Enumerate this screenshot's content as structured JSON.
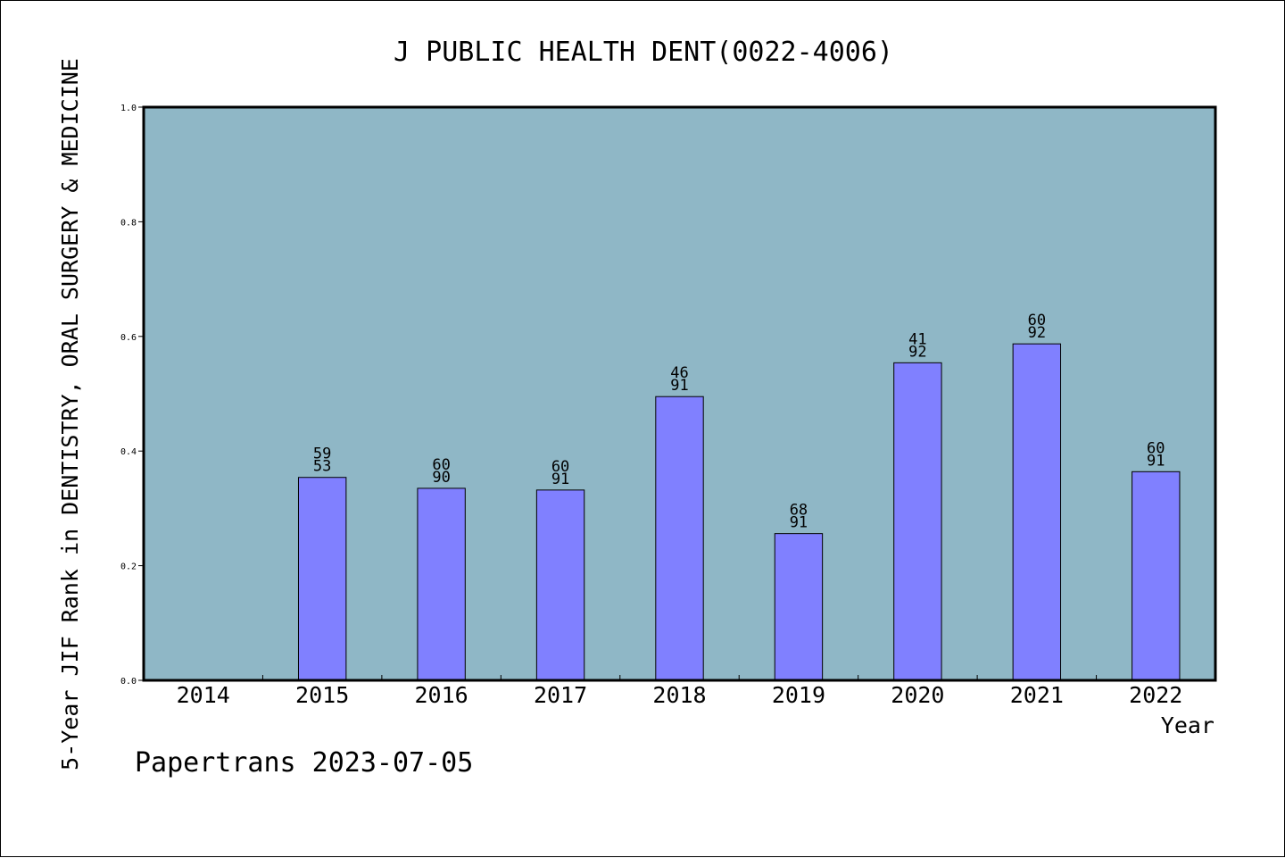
{
  "chart_data": {
    "type": "bar",
    "title": "J PUBLIC HEALTH DENT(0022-4006)",
    "xlabel": "Year",
    "ylabel": "5-Year JIF Rank in DENTISTRY, ORAL SURGERY & MEDICINE",
    "categories": [
      "2014",
      "2015",
      "2016",
      "2017",
      "2018",
      "2019",
      "2020",
      "2021",
      "2022"
    ],
    "values": [
      null,
      0.354,
      0.335,
      0.332,
      0.495,
      0.256,
      0.554,
      0.587,
      0.364
    ],
    "labels": [
      [
        "",
        ""
      ],
      [
        "59",
        "53"
      ],
      [
        "60",
        "90"
      ],
      [
        "60",
        "91"
      ],
      [
        "46",
        "91"
      ],
      [
        "68",
        "91"
      ],
      [
        "41",
        "92"
      ],
      [
        "60",
        "92"
      ],
      [
        "60",
        "91"
      ]
    ],
    "ylim": [
      0,
      1.0
    ],
    "yticks": [
      "0.0",
      "0.2",
      "0.4",
      "0.6",
      "0.8",
      "1.0"
    ],
    "grid": false,
    "colors": {
      "plot_background": "#8fb7c6",
      "bar": "#8080ff",
      "bar_edge": "#000000"
    }
  },
  "footer": {
    "credit": "Papertrans 2023-07-05"
  }
}
